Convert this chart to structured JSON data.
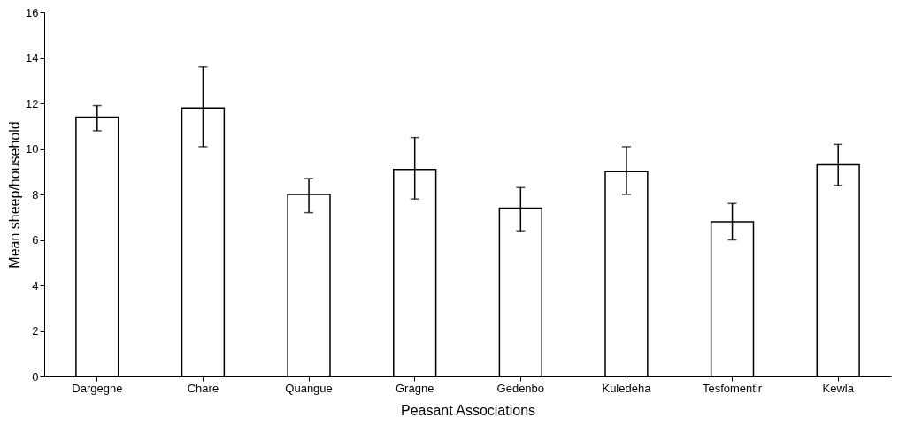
{
  "chart_data": {
    "type": "bar",
    "xlabel": "Peasant Associations",
    "ylabel": "Mean sheep/household",
    "categories": [
      "Dargegne",
      "Chare",
      "Quangue",
      "Gragne",
      "Gedenbo",
      "Kuledeha",
      "Tesfomentir",
      "Kewla"
    ],
    "values": [
      11.4,
      11.8,
      8.0,
      9.1,
      7.4,
      9.0,
      6.8,
      9.3
    ],
    "errors": [
      [
        10.8,
        11.9
      ],
      [
        10.1,
        13.6
      ],
      [
        7.2,
        8.7
      ],
      [
        7.8,
        10.5
      ],
      [
        6.4,
        8.3
      ],
      [
        8.0,
        10.1
      ],
      [
        6.0,
        7.6
      ],
      [
        8.4,
        10.2
      ]
    ],
    "color": "#ffffff",
    "ylim": [
      0,
      16
    ],
    "yticks": [
      0,
      2,
      4,
      6,
      8,
      10,
      12,
      14,
      16
    ],
    "grid": false
  }
}
